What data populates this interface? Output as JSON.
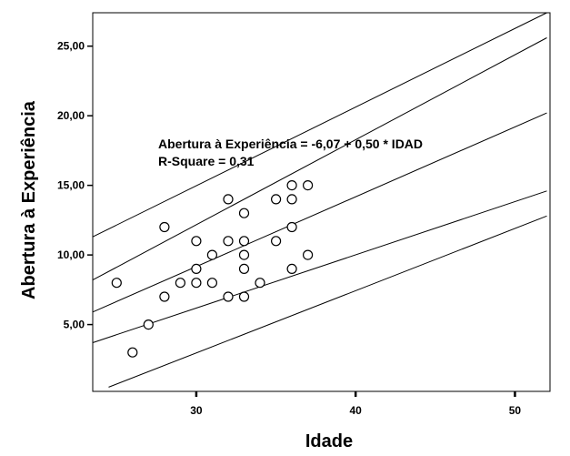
{
  "chart_data": {
    "type": "scatter",
    "title": "",
    "xlabel": "Idade",
    "ylabel": "Abertura à Experiência",
    "xlim": [
      23.5,
      52.2
    ],
    "ylim": [
      0.2,
      27.4
    ],
    "x_ticks": [
      {
        "value": 30,
        "label": "30"
      },
      {
        "value": 40,
        "label": "40"
      },
      {
        "value": 50,
        "label": "50"
      }
    ],
    "y_ticks": [
      {
        "value": 5,
        "label": "5,00"
      },
      {
        "value": 10,
        "label": "10,00"
      },
      {
        "value": 15,
        "label": "15,00"
      },
      {
        "value": 20,
        "label": "20,00"
      },
      {
        "value": 25,
        "label": "25,00"
      }
    ],
    "points": [
      {
        "x": 25,
        "y": 8
      },
      {
        "x": 26,
        "y": 3
      },
      {
        "x": 27,
        "y": 5
      },
      {
        "x": 28,
        "y": 12
      },
      {
        "x": 28,
        "y": 7
      },
      {
        "x": 29,
        "y": 8
      },
      {
        "x": 30,
        "y": 11
      },
      {
        "x": 30,
        "y": 9
      },
      {
        "x": 30,
        "y": 8
      },
      {
        "x": 31,
        "y": 10
      },
      {
        "x": 31,
        "y": 8
      },
      {
        "x": 32,
        "y": 14
      },
      {
        "x": 32,
        "y": 11
      },
      {
        "x": 32,
        "y": 7
      },
      {
        "x": 33,
        "y": 13
      },
      {
        "x": 33,
        "y": 11
      },
      {
        "x": 33,
        "y": 10
      },
      {
        "x": 33,
        "y": 9
      },
      {
        "x": 33,
        "y": 7
      },
      {
        "x": 34,
        "y": 8
      },
      {
        "x": 35,
        "y": 14
      },
      {
        "x": 35,
        "y": 11
      },
      {
        "x": 36,
        "y": 15
      },
      {
        "x": 36,
        "y": 14
      },
      {
        "x": 36,
        "y": 12
      },
      {
        "x": 36,
        "y": 9
      },
      {
        "x": 37,
        "y": 15
      },
      {
        "x": 37,
        "y": 10
      }
    ],
    "lines": [
      {
        "x": [
          23.5,
          52
        ],
        "y": [
          11.3,
          27.4
        ]
      },
      {
        "x": [
          23.5,
          52
        ],
        "y": [
          8.2,
          25.6
        ]
      },
      {
        "x": [
          23.5,
          52
        ],
        "y": [
          5.9,
          20.2
        ]
      },
      {
        "x": [
          23.5,
          52
        ],
        "y": [
          3.7,
          14.6
        ]
      },
      {
        "x": [
          24.5,
          52
        ],
        "y": [
          0.5,
          12.8
        ]
      }
    ],
    "annotations": [
      "Abertura à Experiência = -6,07 + 0,50 * IDAD",
      "R-Square = 0,31"
    ],
    "grid": false,
    "legend": "none"
  }
}
